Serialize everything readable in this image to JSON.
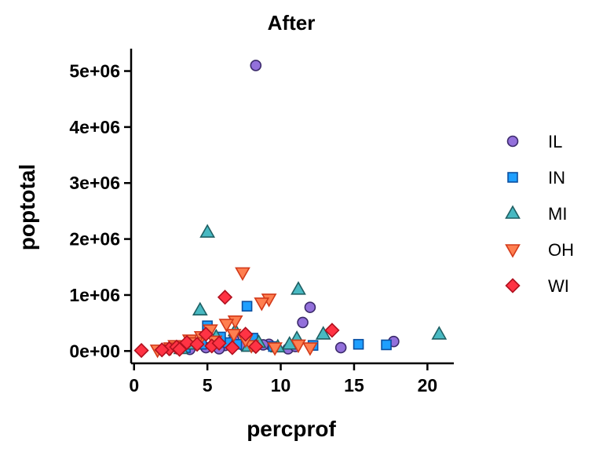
{
  "chart_data": {
    "type": "scatter",
    "title": "After",
    "xlabel": "percprof",
    "ylabel": "poptotal",
    "xlim": [
      -0.2,
      21.8
    ],
    "ylim": [
      -220000,
      5400000
    ],
    "xticks": [
      {
        "value": 0,
        "label": "0"
      },
      {
        "value": 5,
        "label": "5"
      },
      {
        "value": 10,
        "label": "10"
      },
      {
        "value": 15,
        "label": "15"
      },
      {
        "value": 20,
        "label": "20"
      }
    ],
    "yticks": [
      {
        "value": 0,
        "label": "0e+00"
      },
      {
        "value": 1000000,
        "label": "1e+06"
      },
      {
        "value": 2000000,
        "label": "2e+06"
      },
      {
        "value": 3000000,
        "label": "3e+06"
      },
      {
        "value": 4000000,
        "label": "4e+06"
      },
      {
        "value": 5000000,
        "label": "5e+06"
      }
    ],
    "grid": false,
    "legend": "right",
    "series": [
      {
        "name": "IL",
        "marker": "circle",
        "fill": "#9370DB",
        "stroke": "#3B2A6B",
        "points": [
          [
            8.3,
            5100000
          ],
          [
            12.0,
            780000
          ],
          [
            11.5,
            510000
          ],
          [
            17.7,
            170000
          ],
          [
            14.1,
            60000
          ],
          [
            10.5,
            40000
          ],
          [
            9.2,
            120000
          ],
          [
            6.8,
            200000
          ],
          [
            7.5,
            90000
          ],
          [
            5.5,
            150000
          ],
          [
            4.9,
            60000
          ],
          [
            3.8,
            30000
          ],
          [
            6.2,
            100000
          ],
          [
            8.8,
            110000
          ],
          [
            11.0,
            80000
          ],
          [
            5.8,
            40000
          ]
        ]
      },
      {
        "name": "IN",
        "marker": "square",
        "fill": "#1E9FFF",
        "stroke": "#0B4FA0",
        "points": [
          [
            7.7,
            800000
          ],
          [
            5.0,
            450000
          ],
          [
            15.3,
            120000
          ],
          [
            17.2,
            110000
          ],
          [
            12.2,
            100000
          ],
          [
            8.1,
            230000
          ],
          [
            6.4,
            150000
          ],
          [
            4.6,
            120000
          ],
          [
            3.5,
            60000
          ],
          [
            9.5,
            80000
          ],
          [
            5.9,
            250000
          ],
          [
            7.0,
            120000
          ]
        ]
      },
      {
        "name": "MI",
        "marker": "triangle-up",
        "fill": "#48B9C2",
        "stroke": "#1F5F63",
        "points": [
          [
            5.0,
            2120000
          ],
          [
            11.2,
            1100000
          ],
          [
            4.5,
            730000
          ],
          [
            20.8,
            300000
          ],
          [
            12.9,
            300000
          ],
          [
            11.1,
            220000
          ],
          [
            9.8,
            70000
          ],
          [
            10.6,
            120000
          ],
          [
            6.9,
            360000
          ],
          [
            5.6,
            250000
          ],
          [
            4.0,
            120000
          ],
          [
            7.8,
            80000
          ],
          [
            3.2,
            40000
          ],
          [
            8.5,
            150000
          ]
        ]
      },
      {
        "name": "OH",
        "marker": "triangle-down",
        "fill": "#FF7F50",
        "stroke": "#D33A1A",
        "points": [
          [
            7.4,
            1400000
          ],
          [
            9.2,
            930000
          ],
          [
            8.7,
            860000
          ],
          [
            6.9,
            540000
          ],
          [
            6.3,
            480000
          ],
          [
            5.2,
            380000
          ],
          [
            11.2,
            110000
          ],
          [
            12.0,
            60000
          ],
          [
            4.6,
            260000
          ],
          [
            3.8,
            200000
          ],
          [
            2.8,
            100000
          ],
          [
            1.6,
            20000
          ],
          [
            6.8,
            300000
          ],
          [
            5.5,
            180000
          ],
          [
            4.2,
            150000
          ],
          [
            8.0,
            100000
          ],
          [
            9.6,
            60000
          ],
          [
            3.3,
            90000
          ],
          [
            2.5,
            60000
          ],
          [
            7.6,
            200000
          ]
        ]
      },
      {
        "name": "WI",
        "marker": "diamond",
        "fill": "#FF3344",
        "stroke": "#B0101E",
        "points": [
          [
            6.2,
            960000
          ],
          [
            13.5,
            370000
          ],
          [
            0.5,
            10000
          ],
          [
            4.9,
            300000
          ],
          [
            7.6,
            300000
          ],
          [
            3.6,
            150000
          ],
          [
            2.4,
            40000
          ],
          [
            2.9,
            70000
          ],
          [
            4.3,
            120000
          ],
          [
            5.3,
            90000
          ],
          [
            6.7,
            60000
          ],
          [
            3.1,
            30000
          ],
          [
            8.3,
            80000
          ],
          [
            5.8,
            140000
          ],
          [
            1.9,
            20000
          ]
        ]
      }
    ]
  }
}
